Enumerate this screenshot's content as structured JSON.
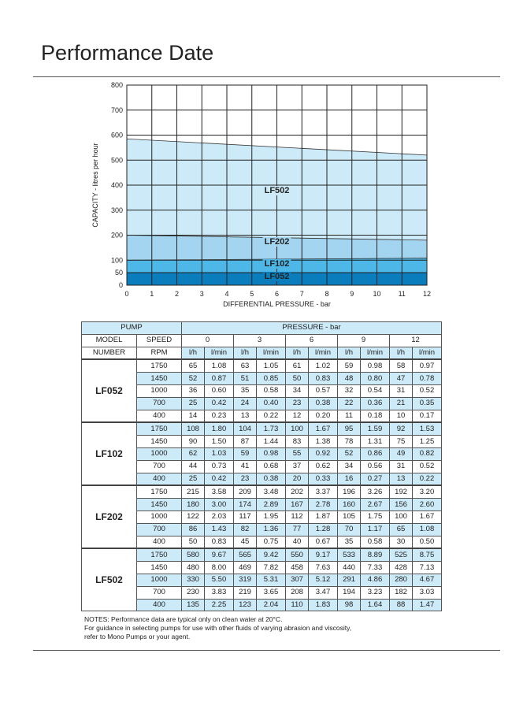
{
  "title": "Performance Date",
  "chart_data": {
    "type": "area",
    "xlabel": "DIFFERENTIAL PRESSURE - bar",
    "ylabel": "CAPACITY - litres per hour",
    "xlim": [
      0,
      12
    ],
    "ylim": [
      0,
      800
    ],
    "xticks": [
      "0",
      "1",
      "2",
      "3",
      "4",
      "5",
      "6",
      "7",
      "8",
      "9",
      "10",
      "11",
      "12"
    ],
    "yticks": [
      "0",
      "50",
      "100",
      "200",
      "300",
      "400",
      "500",
      "600",
      "700",
      "800"
    ],
    "grid": true,
    "x": [
      0,
      12
    ],
    "series": [
      {
        "name": "LF502",
        "values": [
          585,
          520
        ],
        "color": "#cdeaf8"
      },
      {
        "name": "LF202",
        "values": [
          200,
          180
        ],
        "color": "#a3d5f0"
      },
      {
        "name": "LF102",
        "values": [
          100,
          108
        ],
        "color": "#4db8e8"
      },
      {
        "name": "LF052",
        "values": [
          50,
          50
        ],
        "color": "#0a7dbd"
      }
    ]
  },
  "table": {
    "pump": "PUMP",
    "pressure": "PRESSURE - bar",
    "model": "MODEL",
    "number": "NUMBER",
    "speed": "SPEED",
    "rpm": "RPM",
    "pressures": [
      "0",
      "3",
      "6",
      "9",
      "12"
    ],
    "unit_lh": "l/h",
    "unit_lmin": "l/min",
    "groups": [
      {
        "model": "LF052",
        "rows": [
          {
            "rpm": "1750",
            "v": [
              "65",
              "1.08",
              "63",
              "1.05",
              "61",
              "1.02",
              "59",
              "0.98",
              "58",
              "0.97"
            ]
          },
          {
            "rpm": "1450",
            "v": [
              "52",
              "0.87",
              "51",
              "0.85",
              "50",
              "0.83",
              "48",
              "0.80",
              "47",
              "0.78"
            ]
          },
          {
            "rpm": "1000",
            "v": [
              "36",
              "0.60",
              "35",
              "0.58",
              "34",
              "0.57",
              "32",
              "0.54",
              "31",
              "0.52"
            ]
          },
          {
            "rpm": "700",
            "v": [
              "25",
              "0.42",
              "24",
              "0.40",
              "23",
              "0.38",
              "22",
              "0.36",
              "21",
              "0.35"
            ]
          },
          {
            "rpm": "400",
            "v": [
              "14",
              "0.23",
              "13",
              "0.22",
              "12",
              "0.20",
              "11",
              "0.18",
              "10",
              "0.17"
            ]
          }
        ]
      },
      {
        "model": "LF102",
        "rows": [
          {
            "rpm": "1750",
            "v": [
              "108",
              "1.80",
              "104",
              "1.73",
              "100",
              "1.67",
              "95",
              "1.59",
              "92",
              "1.53"
            ]
          },
          {
            "rpm": "1450",
            "v": [
              "90",
              "1.50",
              "87",
              "1.44",
              "83",
              "1.38",
              "78",
              "1.31",
              "75",
              "1.25"
            ]
          },
          {
            "rpm": "1000",
            "v": [
              "62",
              "1.03",
              "59",
              "0.98",
              "55",
              "0.92",
              "52",
              "0.86",
              "49",
              "0.82"
            ]
          },
          {
            "rpm": "700",
            "v": [
              "44",
              "0.73",
              "41",
              "0.68",
              "37",
              "0.62",
              "34",
              "0.56",
              "31",
              "0.52"
            ]
          },
          {
            "rpm": "400",
            "v": [
              "25",
              "0.42",
              "23",
              "0.38",
              "20",
              "0.33",
              "16",
              "0.27",
              "13",
              "0.22"
            ]
          }
        ]
      },
      {
        "model": "LF202",
        "rows": [
          {
            "rpm": "1750",
            "v": [
              "215",
              "3.58",
              "209",
              "3.48",
              "202",
              "3.37",
              "196",
              "3.26",
              "192",
              "3.20"
            ]
          },
          {
            "rpm": "1450",
            "v": [
              "180",
              "3.00",
              "174",
              "2.89",
              "167",
              "2.78",
              "160",
              "2.67",
              "156",
              "2.60"
            ]
          },
          {
            "rpm": "1000",
            "v": [
              "122",
              "2.03",
              "117",
              "1.95",
              "112",
              "1.87",
              "105",
              "1.75",
              "100",
              "1.67"
            ]
          },
          {
            "rpm": "700",
            "v": [
              "86",
              "1.43",
              "82",
              "1.36",
              "77",
              "1.28",
              "70",
              "1.17",
              "65",
              "1.08"
            ]
          },
          {
            "rpm": "400",
            "v": [
              "50",
              "0.83",
              "45",
              "0.75",
              "40",
              "0.67",
              "35",
              "0.58",
              "30",
              "0.50"
            ]
          }
        ]
      },
      {
        "model": "LF502",
        "rows": [
          {
            "rpm": "1750",
            "v": [
              "580",
              "9.67",
              "565",
              "9.42",
              "550",
              "9.17",
              "533",
              "8.89",
              "525",
              "8.75"
            ]
          },
          {
            "rpm": "1450",
            "v": [
              "480",
              "8.00",
              "469",
              "7.82",
              "458",
              "7.63",
              "440",
              "7.33",
              "428",
              "7.13"
            ]
          },
          {
            "rpm": "1000",
            "v": [
              "330",
              "5.50",
              "319",
              "5.31",
              "307",
              "5.12",
              "291",
              "4.86",
              "280",
              "4.67"
            ]
          },
          {
            "rpm": "700",
            "v": [
              "230",
              "3.83",
              "219",
              "3.65",
              "208",
              "3.47",
              "194",
              "3.23",
              "182",
              "3.03"
            ]
          },
          {
            "rpm": "400",
            "v": [
              "135",
              "2.25",
              "123",
              "2.04",
              "110",
              "1.83",
              "98",
              "1.64",
              "88",
              "1.47"
            ]
          }
        ]
      }
    ]
  },
  "notes": [
    "NOTES: Performance data are typical only on clean water at 20°C.",
    "For guidance in selecting pumps for use with other fluids of varying abrasion and viscosity,",
    "refer to Mono Pumps or your agent."
  ]
}
